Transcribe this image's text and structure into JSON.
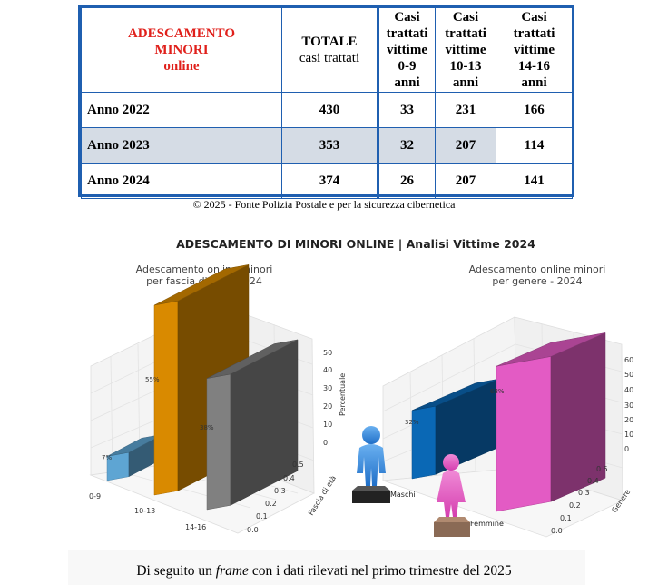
{
  "table": {
    "title_lines": [
      "ADESCAMENTO",
      "MINORI",
      "online"
    ],
    "col_totale": [
      "TOTALE",
      "casi trattati"
    ],
    "col_0_9": [
      "Casi",
      "trattati",
      "vittime",
      "0-9",
      "anni"
    ],
    "col_10_13": [
      "Casi",
      "trattati",
      "vittime",
      "10-13",
      "anni"
    ],
    "col_14_16": [
      "Casi",
      "trattati",
      "vittime",
      "14-16",
      "anni"
    ],
    "rows": [
      {
        "label": "Anno 2022",
        "totale": "430",
        "a0_9": "33",
        "a10_13": "231",
        "a14_16": "166"
      },
      {
        "label": "Anno 2023",
        "totale": "353",
        "a0_9": "32",
        "a10_13": "207",
        "a14_16": "114"
      },
      {
        "label": "Anno 2024",
        "totale": "374",
        "a0_9": "26",
        "a10_13": "207",
        "a14_16": "141"
      }
    ],
    "caption": "© 2025 - Fonte Polizia Postale e per la sicurezza cibernetica"
  },
  "figure_title": "ADESCAMENTO DI MINORI ONLINE | Analisi Vittime 2024",
  "chart_data": [
    {
      "type": "bar",
      "title": "Adescamento online minori per fascia di età - 2024",
      "title_lines": [
        "Adescamento online minori",
        "per fascia di età - 2024"
      ],
      "categories": [
        "0-9",
        "10-13",
        "14-16"
      ],
      "values": [
        7,
        55,
        38
      ],
      "data_labels": [
        "7%",
        "55%",
        "38%"
      ],
      "colors": [
        "#5ea5d3",
        "#d98a00",
        "#808080"
      ],
      "zlabel": "Percentuale",
      "ylabel": "Fascia di età",
      "z_ticks": [
        "0",
        "10",
        "20",
        "30",
        "40",
        "50"
      ],
      "y_ticks": [
        "0.0",
        "0.1",
        "0.2",
        "0.3",
        "0.4",
        "0.5"
      ]
    },
    {
      "type": "bar",
      "title": "Adescamento online minori per genere - 2024",
      "title_lines": [
        "Adescamento online minori",
        "per genere - 2024"
      ],
      "categories": [
        "Maschi",
        "Femmine"
      ],
      "values": [
        32,
        68
      ],
      "data_labels": [
        "32%",
        "68%"
      ],
      "colors": [
        "#0a68b5",
        "#e35bc4"
      ],
      "ylabel": "Genere",
      "z_ticks": [
        "0",
        "10",
        "20",
        "30",
        "40",
        "50",
        "60"
      ],
      "y_ticks": [
        "0.0",
        "0.1",
        "0.2",
        "0.3",
        "0.4",
        "0.5"
      ]
    }
  ],
  "bottom": {
    "prefix": "Di seguito un ",
    "italic": "frame",
    "suffix": " con i dati rilevati nel primo trimestre del 2025"
  }
}
